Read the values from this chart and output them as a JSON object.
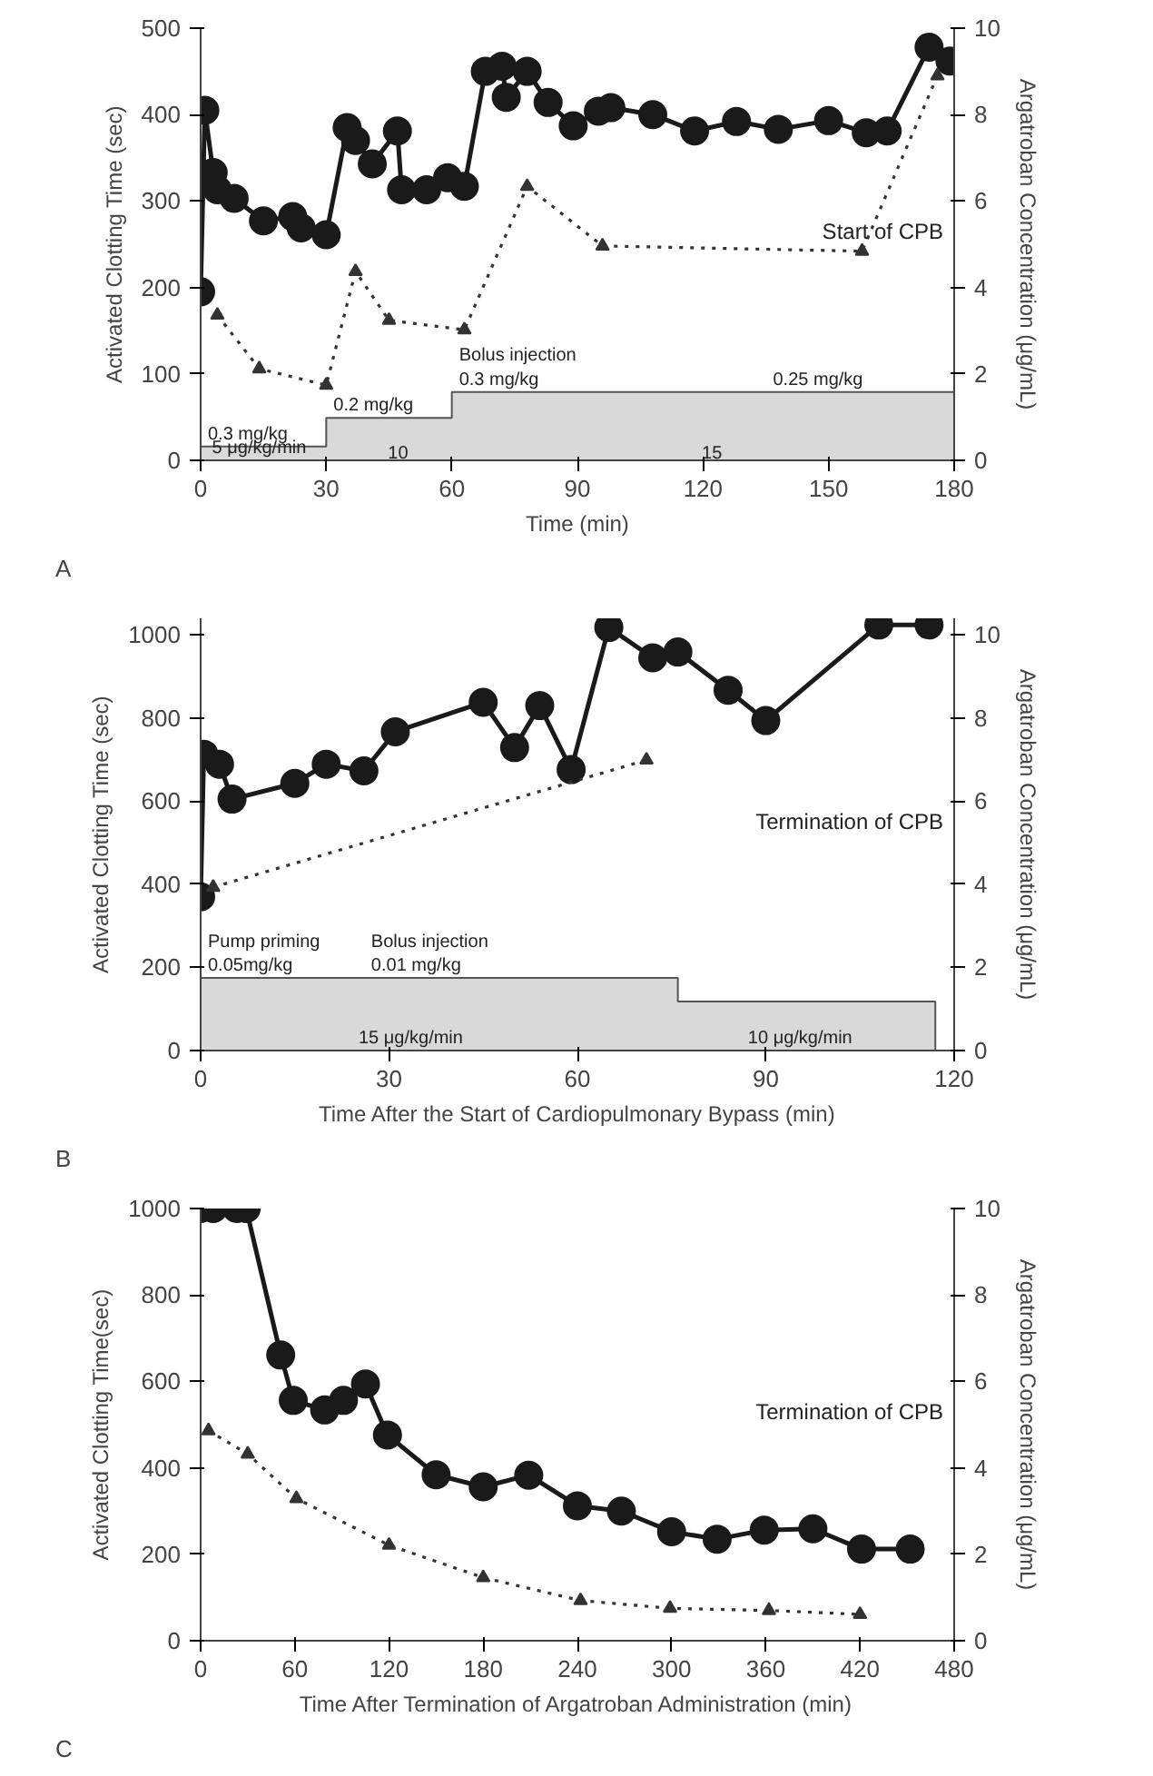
{
  "chart_data": [
    {
      "type": "line",
      "subtitle": "A",
      "xlabel": "Time (min)",
      "ylabel": "Activated Clotting Time (sec)",
      "y2label": "Argatroban Concentration (μg/mL)",
      "xlim": [
        0,
        180
      ],
      "xticks": [
        0,
        30,
        60,
        90,
        120,
        150,
        180
      ],
      "ylim": [
        0,
        500
      ],
      "yticks": [
        0,
        100,
        200,
        300,
        400,
        500
      ],
      "y2lim": [
        0,
        10
      ],
      "y2ticks": [
        0,
        2,
        4,
        6,
        8,
        10
      ],
      "series": [
        {
          "type": "area",
          "color": "#d9d9d9",
          "x": [
            0,
            30,
            30,
            60,
            60,
            180
          ],
          "values": [
            16,
            16,
            49,
            49,
            79,
            79
          ]
        },
        {
          "color": "#1a1a1a",
          "marker": "circle",
          "line_style": "solid",
          "x": [
            0,
            1,
            3,
            4,
            8,
            15,
            22,
            24,
            30,
            35,
            37,
            41,
            47,
            48,
            54,
            59,
            63,
            68,
            72,
            73,
            78,
            83,
            89,
            95,
            98,
            108,
            118,
            128,
            138,
            150,
            159,
            164,
            174,
            179
          ],
          "values": [
            195,
            405,
            333,
            313,
            303,
            277,
            282,
            269,
            261,
            385,
            370,
            343,
            381,
            313,
            313,
            327,
            317,
            450,
            456,
            420,
            450,
            414,
            387,
            404,
            408,
            400,
            381,
            392,
            383,
            393,
            379,
            381,
            478,
            462
          ]
        },
        {
          "axis": "y2",
          "color": "#333333",
          "marker": "triangle",
          "line_style": "dotted",
          "x": [
            4,
            14,
            30,
            37,
            45,
            63,
            78,
            96,
            158,
            176
          ],
          "values": [
            3.36,
            2.12,
            1.74,
            4.37,
            3.24,
            3.02,
            6.34,
            4.96,
            4.84,
            8.9
          ]
        }
      ],
      "annotations": [
        {
          "text": "5 μg/kg/min",
          "x": 1,
          "y": 0
        },
        {
          "text": "10",
          "x": 43,
          "y": 0
        },
        {
          "text": "15",
          "x": 118,
          "y": 0
        },
        {
          "text": "0.3 mg/kg",
          "x": 0,
          "y": 16
        },
        {
          "text": "0.2 mg/kg",
          "x": 30,
          "y": 49
        },
        {
          "text": "Bolus injection\n0.3 mg/kg",
          "x": 60,
          "y": 79
        },
        {
          "text": "0.25 mg/kg",
          "x": 135,
          "y": 79
        },
        "Start of CPB"
      ]
    },
    {
      "type": "line",
      "subtitle": "B",
      "xlabel": "Time After the Start of Cardiopulmonary Bypass (min)",
      "ylabel": "Activated Clotting Time (sec)",
      "y2label": "Argatroban Concentration (μg/mL)",
      "xlim": [
        0,
        120
      ],
      "xticks": [
        0,
        30,
        60,
        90,
        120
      ],
      "ylim": [
        0,
        1040
      ],
      "yticks": [
        0,
        200,
        400,
        600,
        800,
        1000
      ],
      "y2lim": [
        0,
        10.4
      ],
      "y2ticks": [
        0,
        2,
        4,
        6,
        8,
        10
      ],
      "series": [
        {
          "type": "area",
          "color": "#d9d9d9",
          "x": [
            0,
            76,
            76,
            117
          ],
          "values": [
            175,
            175,
            118,
            118
          ]
        },
        {
          "color": "#1a1a1a",
          "marker": "circle",
          "line_style": "solid",
          "x": [
            0,
            0.5,
            3,
            5,
            15,
            20,
            26,
            31,
            45,
            50,
            54,
            59,
            65,
            72,
            76,
            84,
            90,
            108,
            116
          ],
          "values": [
            370,
            713,
            689,
            605,
            643,
            689,
            673,
            767,
            838,
            729,
            830,
            676,
            1018,
            945,
            959,
            867,
            794,
            1024,
            1024
          ]
        },
        {
          "axis": "y2",
          "color": "#333333",
          "marker": "triangle",
          "line_style": "dotted",
          "x": [
            2,
            71
          ],
          "values": [
            3.93,
            6.99
          ]
        }
      ],
      "annotations": [
        {
          "text": "15 μg/kg/min",
          "x": 24,
          "y": 0
        },
        {
          "text": "10 μg/kg/min",
          "x": 86,
          "y": 0
        },
        {
          "text": "Pump priming\n0.05mg/kg",
          "x": 0,
          "y": 175
        },
        {
          "text": "Bolus injection\n0.01 mg/kg",
          "x": 26,
          "y": 175
        },
        "Termination of CPB"
      ]
    },
    {
      "type": "line",
      "subtitle": "C",
      "xlabel": "Time After Termination of Argatroban Administration (min)",
      "ylabel": "Activated Clotting Time(sec)",
      "y2label": "Argatroban Concentration (μg/mL)",
      "xlim": [
        0,
        480
      ],
      "xticks": [
        0,
        60,
        120,
        180,
        240,
        300,
        360,
        420,
        480
      ],
      "ylim": [
        0,
        1000
      ],
      "yticks": [
        0,
        200,
        400,
        600,
        800,
        1000
      ],
      "y2lim": [
        0,
        10
      ],
      "y2ticks": [
        0,
        2,
        4,
        6,
        8,
        10
      ],
      "series": [
        {
          "color": "#1a1a1a",
          "marker": "circle",
          "line_style": "solid",
          "x": [
            0,
            8,
            23,
            29,
            51,
            59,
            79,
            91,
            105,
            119,
            150,
            180,
            209,
            240,
            268,
            300,
            329,
            359,
            390,
            421,
            452
          ],
          "values": [
            1000,
            1000,
            1000,
            1000,
            661,
            556,
            534,
            556,
            594,
            476,
            384,
            356,
            383,
            312,
            300,
            252,
            235,
            256,
            259,
            212,
            212
          ]
        },
        {
          "axis": "y2",
          "color": "#333333",
          "marker": "triangle",
          "line_style": "dotted",
          "x": [
            5,
            30,
            61,
            120,
            180,
            242,
            299,
            362,
            420
          ],
          "values": [
            4.86,
            4.32,
            3.29,
            2.21,
            1.46,
            0.93,
            0.75,
            0.7,
            0.61
          ]
        }
      ],
      "annotations": [
        "Termination of CPB"
      ]
    }
  ]
}
